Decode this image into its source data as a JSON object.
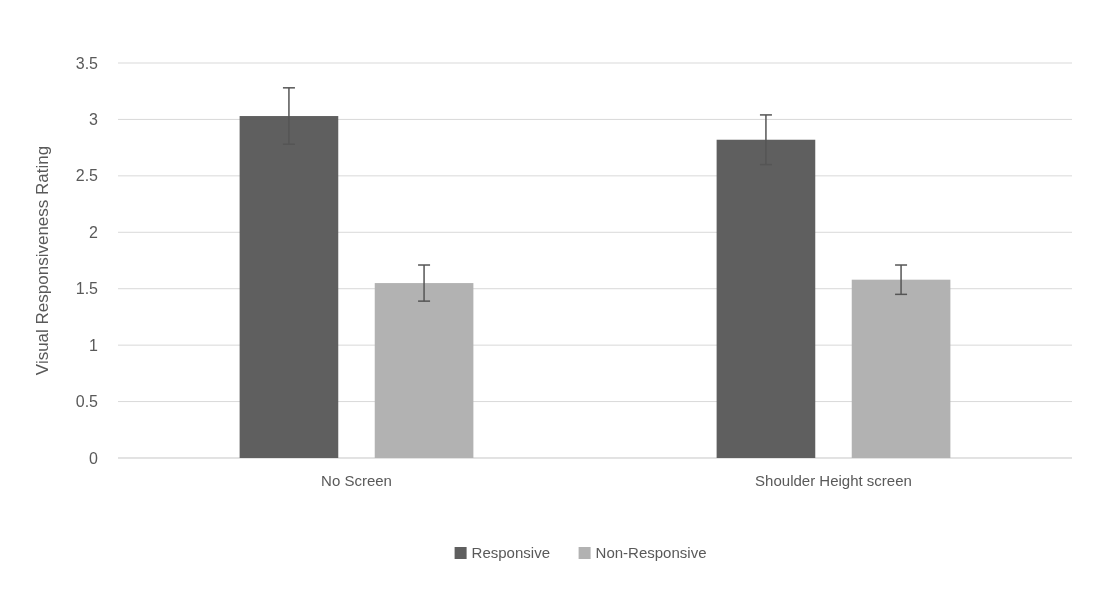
{
  "chart_data": {
    "type": "bar",
    "ylabel": "Visual Responsiveness Rating",
    "categories": [
      "No Screen",
      "Shoulder Height screen"
    ],
    "series": [
      {
        "name": "Responsive",
        "color": "#5f5f5f",
        "values": [
          3.03,
          2.82
        ],
        "errors": [
          0.25,
          0.22
        ]
      },
      {
        "name": "Non-Responsive",
        "color": "#b2b2b2",
        "values": [
          1.55,
          1.58
        ],
        "errors": [
          0.16,
          0.13
        ]
      }
    ],
    "ylim": [
      0,
      3.5
    ],
    "yticks": [
      0,
      0.5,
      1,
      1.5,
      2,
      2.5,
      3,
      3.5
    ],
    "grid": "y",
    "legend": "bottom"
  }
}
